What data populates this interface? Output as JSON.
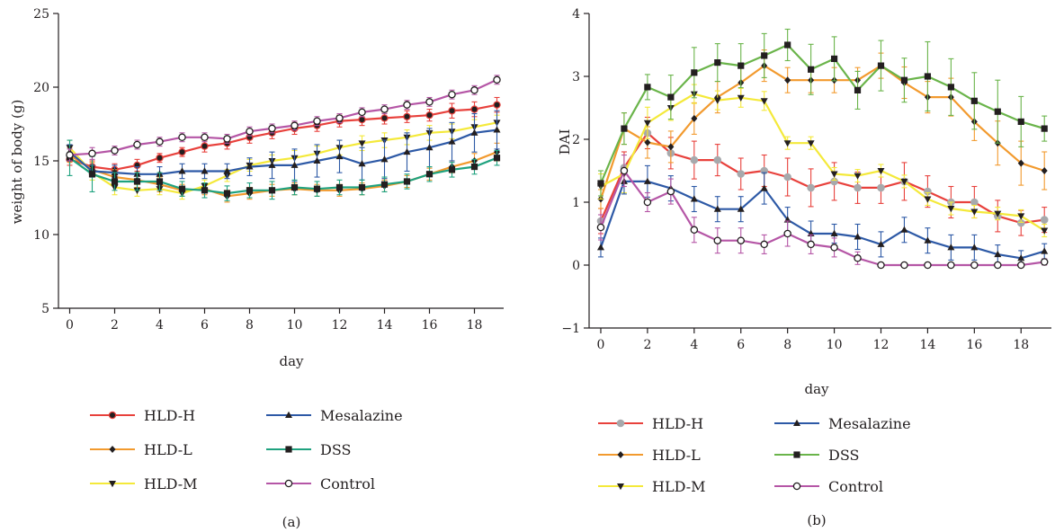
{
  "colors": {
    "HLD-H": "#e8413c",
    "HLD-L": "#f29a2e",
    "HLD-M": "#f4e93a",
    "Mesalazine": "#2d59a6",
    "DSS": "#1fa27f",
    "Control": "#b556a6",
    "DSS_b": "#6ab44a",
    "axis": "#231f20"
  },
  "chart_data": [
    {
      "type": "line",
      "caption": "(a)",
      "xlabel": "day",
      "ylabel": "weight of body (g)",
      "xlim": [
        -0.5,
        19.3
      ],
      "ylim": [
        5,
        25
      ],
      "xticks": [
        0,
        2,
        4,
        6,
        8,
        10,
        12,
        14,
        16,
        18
      ],
      "yticks": [
        5,
        10,
        15,
        20,
        25
      ],
      "x": [
        0,
        1,
        2,
        3,
        4,
        5,
        6,
        7,
        8,
        9,
        10,
        11,
        12,
        13,
        14,
        15,
        16,
        17,
        18,
        19
      ],
      "grid": false,
      "legend_position": "bottom",
      "series": [
        {
          "name": "HLD-H",
          "color": "#e8413c",
          "marker": "circle",
          "values": [
            15.1,
            14.6,
            14.4,
            14.7,
            15.2,
            15.6,
            16.0,
            16.2,
            16.6,
            16.9,
            17.2,
            17.4,
            17.7,
            17.8,
            17.9,
            18.0,
            18.1,
            18.4,
            18.5,
            18.8
          ],
          "err": [
            0.4,
            0.4,
            0.4,
            0.4,
            0.3,
            0.3,
            0.4,
            0.4,
            0.4,
            0.4,
            0.4,
            0.4,
            0.4,
            0.4,
            0.4,
            0.4,
            0.4,
            0.5,
            0.5,
            0.5
          ]
        },
        {
          "name": "HLD-L",
          "color": "#f29a2e",
          "marker": "diamond",
          "values": [
            15.4,
            14.4,
            13.9,
            13.7,
            13.4,
            13.0,
            13.1,
            12.6,
            12.8,
            13.0,
            13.1,
            13.0,
            13.0,
            13.1,
            13.3,
            13.6,
            14.1,
            14.6,
            15.0,
            15.6
          ],
          "err": [
            0.5,
            0.5,
            0.5,
            0.5,
            0.5,
            0.4,
            0.4,
            0.4,
            0.4,
            0.4,
            0.4,
            0.4,
            0.4,
            0.4,
            0.4,
            0.4,
            0.4,
            0.4,
            0.5,
            0.6
          ]
        },
        {
          "name": "HLD-M",
          "color": "#f4e93a",
          "marker": "triangle-down",
          "values": [
            15.9,
            14.2,
            13.2,
            13.0,
            13.1,
            12.8,
            13.3,
            14.0,
            14.7,
            15.0,
            15.2,
            15.5,
            15.9,
            16.2,
            16.4,
            16.6,
            16.9,
            17.0,
            17.3,
            17.6
          ],
          "err": [
            0.5,
            0.5,
            0.5,
            0.4,
            0.4,
            0.4,
            0.4,
            0.4,
            0.4,
            0.4,
            0.5,
            0.5,
            0.5,
            0.5,
            0.5,
            0.5,
            0.5,
            0.5,
            0.5,
            0.5
          ]
        },
        {
          "name": "Mesalazine",
          "color": "#2d59a6",
          "marker": "triangle-up",
          "values": [
            15.6,
            14.3,
            14.2,
            14.1,
            14.1,
            14.3,
            14.3,
            14.3,
            14.6,
            14.7,
            14.7,
            15.0,
            15.3,
            14.8,
            15.1,
            15.6,
            15.9,
            16.3,
            16.9,
            17.1
          ],
          "err": [
            0.5,
            0.4,
            0.5,
            0.5,
            0.5,
            0.5,
            0.5,
            0.5,
            0.6,
            0.9,
            1.1,
            1.1,
            1.1,
            1.1,
            1.3,
            1.3,
            1.3,
            1.3,
            1.3,
            1.3
          ]
        },
        {
          "name": "DSS",
          "color": "#1fa27f",
          "marker": "square",
          "values": [
            15.2,
            14.1,
            13.6,
            13.6,
            13.6,
            13.1,
            13.0,
            12.8,
            13.0,
            13.0,
            13.2,
            13.1,
            13.2,
            13.2,
            13.4,
            13.6,
            14.1,
            14.4,
            14.6,
            15.2
          ],
          "err": [
            1.2,
            1.2,
            0.6,
            0.6,
            0.6,
            0.5,
            0.5,
            0.5,
            0.5,
            0.6,
            0.5,
            0.5,
            0.5,
            0.5,
            0.5,
            0.5,
            0.5,
            0.5,
            0.5,
            0.5
          ]
        },
        {
          "name": "Control",
          "color": "#b556a6",
          "marker": "circle-open",
          "values": [
            15.4,
            15.5,
            15.7,
            16.1,
            16.3,
            16.6,
            16.6,
            16.5,
            17.0,
            17.2,
            17.4,
            17.7,
            17.9,
            18.3,
            18.5,
            18.8,
            19.0,
            19.5,
            19.8,
            20.5
          ],
          "err": [
            0.4,
            0.4,
            0.3,
            0.3,
            0.3,
            0.3,
            0.3,
            0.3,
            0.3,
            0.3,
            0.3,
            0.3,
            0.3,
            0.3,
            0.3,
            0.3,
            0.3,
            0.3,
            0.3,
            0.3
          ]
        }
      ]
    },
    {
      "type": "line",
      "caption": "(b)",
      "xlabel": "day",
      "ylabel": "DAI",
      "xlim": [
        -0.5,
        19.3
      ],
      "ylim": [
        -1,
        4
      ],
      "xticks": [
        0,
        2,
        4,
        6,
        8,
        10,
        12,
        14,
        16,
        18
      ],
      "yticks": [
        -1,
        0,
        1,
        2,
        3,
        4
      ],
      "x": [
        0,
        1,
        2,
        3,
        4,
        5,
        6,
        7,
        8,
        9,
        10,
        11,
        12,
        13,
        14,
        15,
        16,
        17,
        18,
        19
      ],
      "grid": false,
      "legend_position": "bottom",
      "series": [
        {
          "name": "HLD-H",
          "color": "#e8413c",
          "marker": "circle-gray",
          "values": [
            0.7,
            1.55,
            2.1,
            1.78,
            1.67,
            1.67,
            1.45,
            1.5,
            1.4,
            1.23,
            1.33,
            1.23,
            1.23,
            1.33,
            1.17,
            1.0,
            1.0,
            0.78,
            0.67,
            0.72
          ],
          "err": [
            0.2,
            0.25,
            0.25,
            0.25,
            0.3,
            0.25,
            0.25,
            0.25,
            0.3,
            0.3,
            0.3,
            0.25,
            0.25,
            0.3,
            0.25,
            0.25,
            0.25,
            0.25,
            0.2,
            0.2
          ]
        },
        {
          "name": "HLD-L",
          "color": "#f29a2e",
          "marker": "diamond",
          "values": [
            1.05,
            2.17,
            1.95,
            1.88,
            2.33,
            2.67,
            2.9,
            3.17,
            2.94,
            2.94,
            2.94,
            2.94,
            3.17,
            2.9,
            2.67,
            2.67,
            2.28,
            1.94,
            1.62,
            1.5
          ],
          "err": [
            0.15,
            0.25,
            0.25,
            0.25,
            0.25,
            0.25,
            0.25,
            0.25,
            0.2,
            0.2,
            0.2,
            0.2,
            0.2,
            0.25,
            0.25,
            0.3,
            0.3,
            0.35,
            0.35,
            0.3
          ]
        },
        {
          "name": "HLD-M",
          "color": "#f4e93a",
          "marker": "triangle-down",
          "values": [
            1.25,
            1.45,
            2.26,
            2.5,
            2.72,
            2.62,
            2.66,
            2.61,
            1.94,
            1.94,
            1.45,
            1.42,
            1.5,
            1.33,
            1.05,
            0.9,
            0.85,
            0.82,
            0.78,
            0.55
          ],
          "err": [
            0.2,
            0.3,
            0.25,
            0.2,
            0.15,
            0.15,
            0.15,
            0.15,
            0.1,
            0.1,
            0.1,
            0.1,
            0.1,
            0.1,
            0.1,
            0.1,
            0.1,
            0.1,
            0.1,
            0.1
          ]
        },
        {
          "name": "Mesalazine",
          "color": "#2d59a6",
          "marker": "triangle-up",
          "values": [
            0.28,
            1.33,
            1.33,
            1.22,
            1.05,
            0.89,
            0.89,
            1.22,
            0.72,
            0.5,
            0.5,
            0.45,
            0.33,
            0.56,
            0.39,
            0.28,
            0.28,
            0.17,
            0.11,
            0.22
          ],
          "err": [
            0.15,
            0.2,
            0.25,
            0.2,
            0.2,
            0.2,
            0.2,
            0.25,
            0.2,
            0.2,
            0.15,
            0.2,
            0.2,
            0.2,
            0.2,
            0.2,
            0.2,
            0.15,
            0.12,
            0.12
          ]
        },
        {
          "name": "DSS",
          "color": "#6ab44a",
          "marker": "square",
          "values": [
            1.3,
            2.17,
            2.83,
            2.67,
            3.06,
            3.22,
            3.17,
            3.33,
            3.5,
            3.11,
            3.28,
            2.78,
            3.17,
            2.94,
            3.0,
            2.83,
            2.61,
            2.44,
            2.28,
            2.17
          ],
          "err": [
            0.2,
            0.25,
            0.2,
            0.35,
            0.4,
            0.3,
            0.35,
            0.35,
            0.25,
            0.4,
            0.35,
            0.3,
            0.4,
            0.35,
            0.55,
            0.45,
            0.45,
            0.5,
            0.4,
            0.2
          ]
        },
        {
          "name": "Control",
          "color": "#b556a6",
          "marker": "circle-open",
          "values": [
            0.6,
            1.5,
            1.0,
            1.17,
            0.56,
            0.39,
            0.39,
            0.33,
            0.5,
            0.33,
            0.28,
            0.11,
            0.0,
            0.0,
            0.0,
            0.0,
            0.0,
            0.0,
            0.0,
            0.05
          ],
          "err": [
            0.2,
            0.25,
            0.15,
            0.2,
            0.2,
            0.2,
            0.2,
            0.15,
            0.2,
            0.15,
            0.15,
            0.1,
            0,
            0,
            0,
            0,
            0,
            0,
            0,
            0.05
          ]
        }
      ]
    }
  ]
}
